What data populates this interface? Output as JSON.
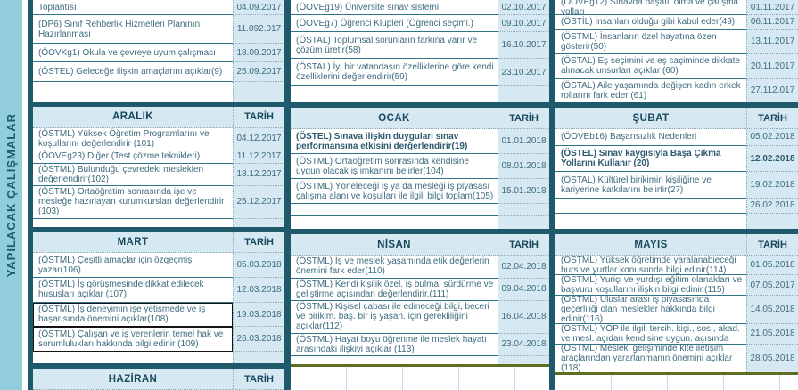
{
  "page": {
    "vertical_label": "YAPILACAK ÇALIŞMALAR",
    "date_header": "TARİH"
  },
  "colors": {
    "band": "#92cddc",
    "cell_fill": "#d6e9f3",
    "thick_border": "#1e5a6b",
    "olive_border": "#5e6e22",
    "body_text": "#3d6b7e",
    "header_text": "#17485c"
  },
  "months": [
    "ARALIK",
    "OCAK",
    "ŞUBAT",
    "MART",
    "NİSAN",
    "MAYIS",
    "HAZİRAN"
  ],
  "tables": [
    {
      "sections": [
        {
          "kind": "rows",
          "cls": "a",
          "rows": [
            {
              "text": "Toplantısı",
              "date": "04.09.2017",
              "cut": true
            },
            {
              "text": "(DP6) Sınıf Rehberlik Hizmetleri Planının Hazırlanması",
              "date": "11.092.017"
            },
            {
              "text": "(ÖOVKg1) Okula ve çevreye uyum çalışması",
              "date": "18.09.2017"
            },
            {
              "text": "(ÖSTEL) Geleceğe ilişkin amaçlarını açıklar(9)",
              "date": "25.09.2017"
            },
            {
              "text": "",
              "date": ""
            }
          ]
        },
        {
          "kind": "header",
          "month": "ARALIK"
        },
        {
          "kind": "rows",
          "cls": "b",
          "rows": [
            {
              "text": "(ÖSTML) Yüksek Öğretim Programlarını ve koşullarını değerlendirir (101)",
              "date": "04.12.2017"
            },
            {
              "text": "(ÖOVEg23) Diğer (Test çözme teknikleri)",
              "date": "11.12.2017"
            },
            {
              "text": "(ÖSTML) Bulunduğu çevredeki meslekleri değerlendirir(102)",
              "date": "18.12.2017"
            },
            {
              "text": "(ÖSTML) Ortaöğretim sonrasında işe ve mesleğe hazırlayan kurumkursları değerlendirir (103)",
              "date": "25.12.2017"
            },
            {
              "text": "",
              "date": ""
            }
          ]
        },
        {
          "kind": "header",
          "month": "MART"
        },
        {
          "kind": "rows",
          "cls": "c1",
          "rows": [
            {
              "text": "(ÖSTML) Çeşitli amaçlar için özgeçmiş yazar(106)",
              "date": "05.03.2018"
            },
            {
              "text": "(ÖSTML) İş görüşmesinde dikkat edilecek hususları açıklar (107)",
              "date": "12.03.2018"
            },
            {
              "text": "(ÖSTML) İş deneyimin işe yetişmede ve iş başarısında önemini açıklar(108)",
              "date": "19.03.2018",
              "black_border": true
            },
            {
              "text": "(ÖSTML)  Çalışan ve iş verenlerin temel hak ve sorumlulukları hakkında bilgi edinir (109)",
              "date": "26.03.2018",
              "black_border": true
            },
            {
              "text": "",
              "date": ""
            }
          ]
        },
        {
          "kind": "header",
          "month": "HAZİRAN"
        }
      ]
    },
    {
      "sections": [
        {
          "kind": "rows",
          "cls": "a",
          "rows": [
            {
              "text": "(ÖOVEg19) Üniversite sınav sistemi",
              "date": "02.10.2017",
              "cut": true
            },
            {
              "text": "(ÖOVEg7) Öğrenci Klüpleri (Öğrenci seçimi.)",
              "date": "09.10.2017"
            },
            {
              "text": "(ÖSTAL) Toplumsal sorunların farkına varır ve çözüm üretir(58)",
              "date": "16.10.2017"
            },
            {
              "text": "(ÖSTAL) İyi bir vatandaşın özelliklerine göre kendi özelliklerini değerlendirir(59)",
              "date": "23.10.2017"
            },
            {
              "text": "",
              "date": ""
            }
          ]
        },
        {
          "kind": "header",
          "month": "OCAK"
        },
        {
          "kind": "rows",
          "cls": "b",
          "rows": [
            {
              "text": "(ÖSTEL) Sınava ilişkin duyguları sınav performansına etkisini derğerlendirir(19)",
              "date": "01.01.2018",
              "bold": true
            },
            {
              "text": "(ÖSTML) Ortaöğretim sonrasında kendisine uygun olacak iş imkanını belirler(104)",
              "date": "08.01.2018"
            },
            {
              "text": "(ÖSTML) Yöneleceği iş ya da mesleği iş piyasası çalışma alanı ve koşulları ile ilgili bilgi toplam(105)",
              "date": "15.01.2018"
            },
            {
              "text": "",
              "date": ""
            },
            {
              "text": "",
              "date": ""
            }
          ]
        },
        {
          "kind": "header",
          "month": "NİSAN"
        },
        {
          "kind": "rows",
          "cls": "c2",
          "rows": [
            {
              "text": "(ÖSTML) İş ve meslek yaşamında etik değerlerin önemini fark eder(110)",
              "date": "02.04.2018"
            },
            {
              "text": "(ÖSTML) Kendi kişilik özel. iş bulma, sürdürme ve geliştirme açısından değerlendirir.(111)",
              "date": "09.04.2018"
            },
            {
              "text": "(ÖSTML) Kişisel çabası ile edineceği bilgi, beceri ve birikim. baş. bir iş yaşan. için gerekliliğini açıklar(112)",
              "date": "16.04.2018"
            },
            {
              "text": "(ÖSTML) Hayat boyu öğrenme ile meslek hayatı arasındaki ilişkiyi açıklar (113)",
              "date": "23.04.2018"
            },
            {
              "text": "",
              "date": ""
            }
          ]
        },
        {
          "kind": "strip"
        }
      ]
    },
    {
      "sections": [
        {
          "kind": "rows",
          "cls": "a",
          "rows": [
            {
              "text": "(ÖOVEg12) Sınavda başaılı olma ve çalışma yolları",
              "date": "01.11.2017",
              "cut": true
            },
            {
              "text": "(ÖSTİL) İnsanları olduğu gibi kabul eder(49)",
              "date": "06.11.2017"
            },
            {
              "text": "(ÖSTML) İnsanların özel hayatına özen gösterir(50)",
              "date": "13.11.2017"
            },
            {
              "text": "(ÖSTAL) Eş seçimini ve eş saçiminde dikkate alınacak unsurları açıklar (60)",
              "date": "20.11.2017"
            },
            {
              "text": "(ÖSTAL) Aile yaşamında değişen kadın erkek rollarını fark eder (61)",
              "date": "27.112.017"
            }
          ]
        },
        {
          "kind": "header",
          "month": "ŞUBAT"
        },
        {
          "kind": "rows",
          "cls": "b",
          "rows": [
            {
              "text": "(ÖOVEb16) Başarısızlık Nedenleri",
              "date": "05.02.2018"
            },
            {
              "text": "(ÖSTEL) Sınav kaygısıyla Başa Çıkma Yollarını Kullanır (20)",
              "date": "12.02.2018",
              "bold": true,
              "date_bold": true
            },
            {
              "text": "(ÖSTAL) Kültürel birikimin kişiliğine ve kariyerine katkılarını belirtir(27)",
              "date": "19.02.2018"
            },
            {
              "text": "",
              "date": "26.02.2018"
            },
            {
              "text": "",
              "date": ""
            }
          ]
        },
        {
          "kind": "header",
          "month": "MAYIS"
        },
        {
          "kind": "rows",
          "cls": "c3",
          "rows": [
            {
              "text": "(ÖSTML) Yüksek öğretimde yaralanabieceği burs ve yurtlar konusunda bilgi edinir(114)",
              "date": "01.05.2018"
            },
            {
              "text": "(ÖSTML) Yuriçi ve yurdışı eğitim olanakları ve başvuru koşullarını ilişkin bilgi edinir.(115)",
              "date": "07.05.2017"
            },
            {
              "text": "(ÖSTML) Uluslar arası iş piyasasında geçerliliği olan meslekler hakkında bilgi edinir(116)",
              "date": "14.05.2018"
            },
            {
              "text": "(ÖSTML) YÖP ile ilgili tercih. kişi., sos., akad. ve mesl. açıdan kendisine uygun. açısında",
              "date": "21.05.2018"
            },
            {
              "text": "(ÖSTML) Mesleki gelişiminde kite iletişim araçlarından yararlanmanın önemini açıklar (118)",
              "date": "28.05.2018"
            }
          ]
        },
        {
          "kind": "strip"
        }
      ]
    }
  ]
}
